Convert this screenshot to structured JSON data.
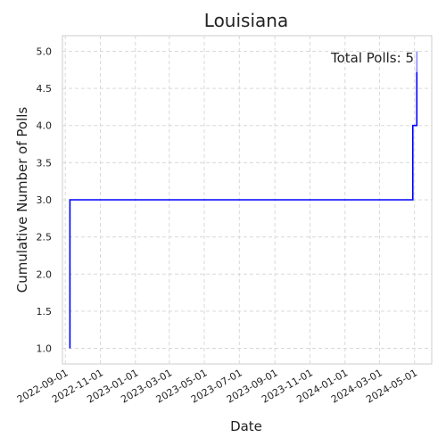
{
  "chart_data": {
    "type": "line",
    "title": "Louisiana",
    "xlabel": "Date",
    "ylabel": "Cumulative Number of Polls",
    "annotation": "Total Polls: 5",
    "x_ticks": [
      "2022-09-01",
      "2022-11-01",
      "2023-01-01",
      "2023-03-01",
      "2023-05-01",
      "2023-07-01",
      "2023-09-01",
      "2023-11-01",
      "2024-01-01",
      "2024-03-01",
      "2024-05-01"
    ],
    "y_ticks": [
      "1.0",
      "1.5",
      "2.0",
      "2.5",
      "3.0",
      "3.5",
      "4.0",
      "4.5",
      "5.0"
    ],
    "xlim": [
      "2022-08-27",
      "2024-05-31"
    ],
    "ylim": [
      0.79,
      5.21
    ],
    "grid": true,
    "series": [
      {
        "color": "#0000ff",
        "points": [
          {
            "x": "2022-09-09",
            "y": 1
          },
          {
            "x": "2022-09-09",
            "y": 3
          },
          {
            "x": "2024-04-28",
            "y": 3
          },
          {
            "x": "2024-04-28",
            "y": 4
          },
          {
            "x": "2024-05-05",
            "y": 4
          },
          {
            "x": "2024-05-05",
            "y": 5
          }
        ]
      }
    ]
  }
}
